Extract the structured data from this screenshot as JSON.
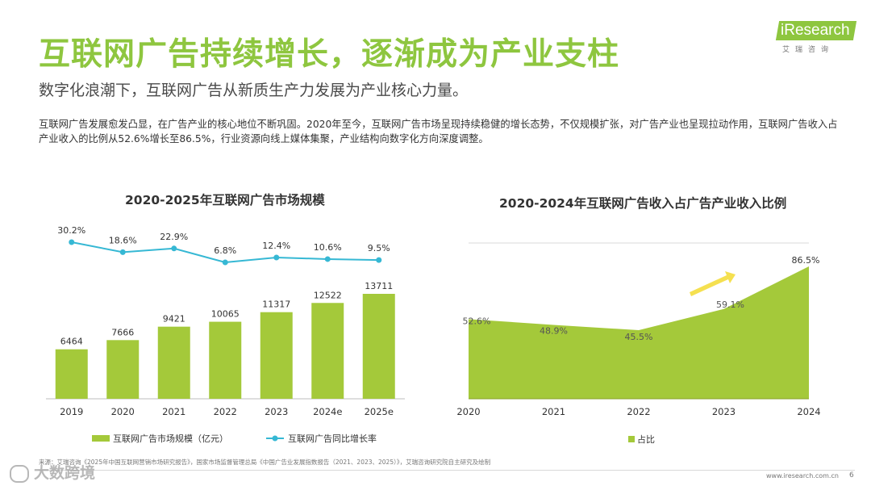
{
  "header": {
    "title": "互联网广告持续增长，逐渐成为产业支柱",
    "subtitle": "数字化浪潮下，互联网广告从新质生产力发展为产业核心力量。",
    "body": "互联网广告发展愈发凸显，在广告产业的核心地位不断巩固。2020年至今，互联网广告市场呈现持续稳健的增长态势，不仅规模扩张，对广告产业也呈现拉动作用，互联网广告收入占产业收入的比例从52.6%增长至86.5%，行业资源向线上媒体集聚，产业结构向数字化方向深度调整。"
  },
  "logo": {
    "name": "iResearch",
    "sub": "艾瑞咨询"
  },
  "colors": {
    "green": "#8ec63f",
    "chart_green": "#a4c93a",
    "line_blue": "#36b8d4",
    "arrow_yellow": "#f5e050"
  },
  "chart_data": [
    {
      "type": "bar",
      "title": "2020-2025年互联网广告市场规模",
      "categories": [
        "2019",
        "2020",
        "2021",
        "2022",
        "2023",
        "2024e",
        "2025e"
      ],
      "series": [
        {
          "name": "互联网广告市场规模（亿元）",
          "type": "bar",
          "values": [
            6464,
            7666,
            9421,
            10065,
            11317,
            12522,
            13711
          ]
        },
        {
          "name": "互联网广告同比增长率",
          "type": "line",
          "values": [
            30.2,
            18.6,
            22.9,
            6.8,
            12.4,
            10.6,
            9.5
          ],
          "labels": [
            "30.2%",
            "18.6%",
            "22.9%",
            "6.8%",
            "12.4%",
            "10.6%",
            "9.5%"
          ]
        }
      ],
      "legend": "bottom"
    },
    {
      "type": "area",
      "title": "2020-2024年互联网广告收入占广告产业收入比例",
      "categories": [
        "2020",
        "2021",
        "2022",
        "2023",
        "2024"
      ],
      "series": [
        {
          "name": "占比",
          "values": [
            52.6,
            48.9,
            45.5,
            59.1,
            86.5
          ],
          "labels": [
            "52.6%",
            "48.9%",
            "45.5%",
            "59.1%",
            "86.5%"
          ]
        }
      ],
      "legend": "bottom"
    }
  ],
  "footer": {
    "source": "来源：艾瑞咨询《2025年中国互联网营销市场研究报告》，国家市场监督管理总局《中国广告业发展指数报告（2021、2023、2025）》，艾瑞咨询研究院自主研究及绘制",
    "url": "www.iresearch.com.cn",
    "page": "6",
    "watermark": "大数跨境"
  }
}
